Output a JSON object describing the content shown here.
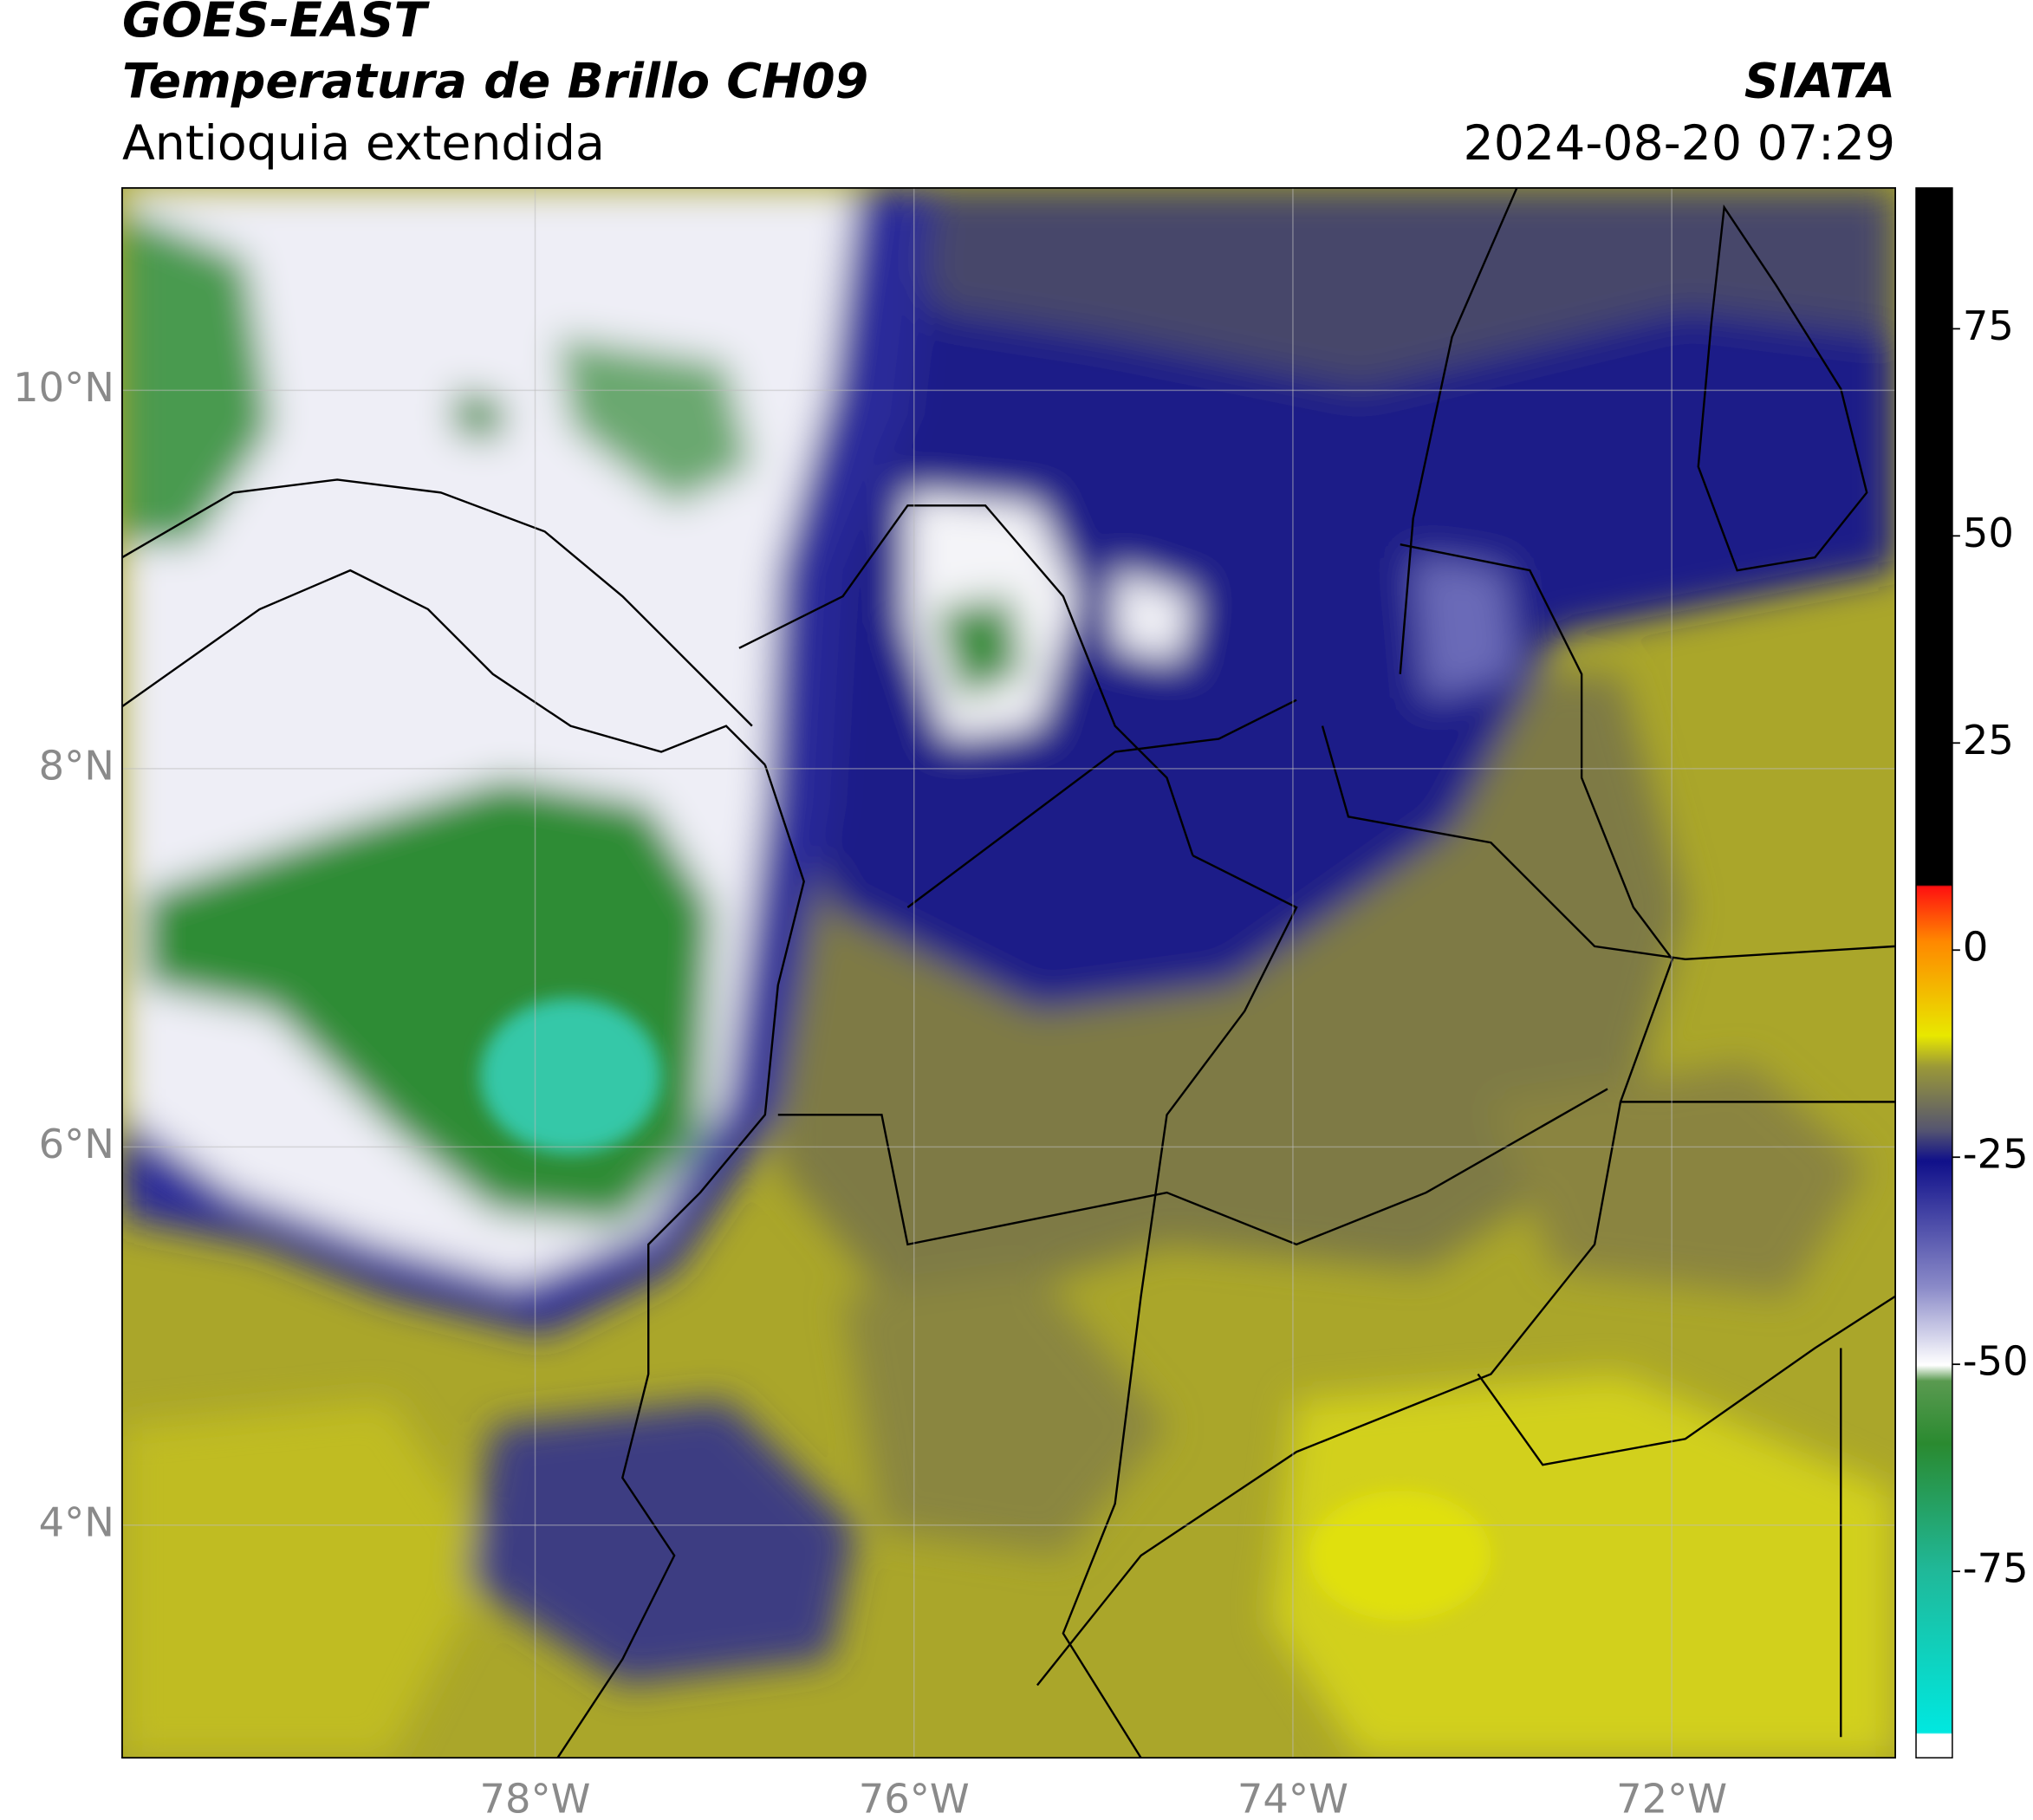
{
  "header": {
    "satellite": "GOES-EAST",
    "product": "Temperatura de Brillo CH09",
    "region": "Antioquia extendida",
    "source": "SIATA",
    "datetime": "2024-08-20 07:29"
  },
  "map": {
    "xlim": [
      -80.18,
      -70.82
    ],
    "ylim": [
      2.77,
      11.07
    ],
    "lat_ticks": [
      {
        "value": 4,
        "label": "4°N"
      },
      {
        "value": 6,
        "label": "6°N"
      },
      {
        "value": 8,
        "label": "8°N"
      },
      {
        "value": 10,
        "label": "10°N"
      }
    ],
    "lon_ticks": [
      {
        "value": -78,
        "label": "78°W"
      },
      {
        "value": -76,
        "label": "76°W"
      },
      {
        "value": -74,
        "label": "74°W"
      },
      {
        "value": -72,
        "label": "72°W"
      }
    ]
  },
  "colorbar": {
    "lim": [
      -97.5,
      92
    ],
    "ticks": [
      -75,
      -50,
      -25,
      0,
      25,
      50,
      75
    ]
  }
}
